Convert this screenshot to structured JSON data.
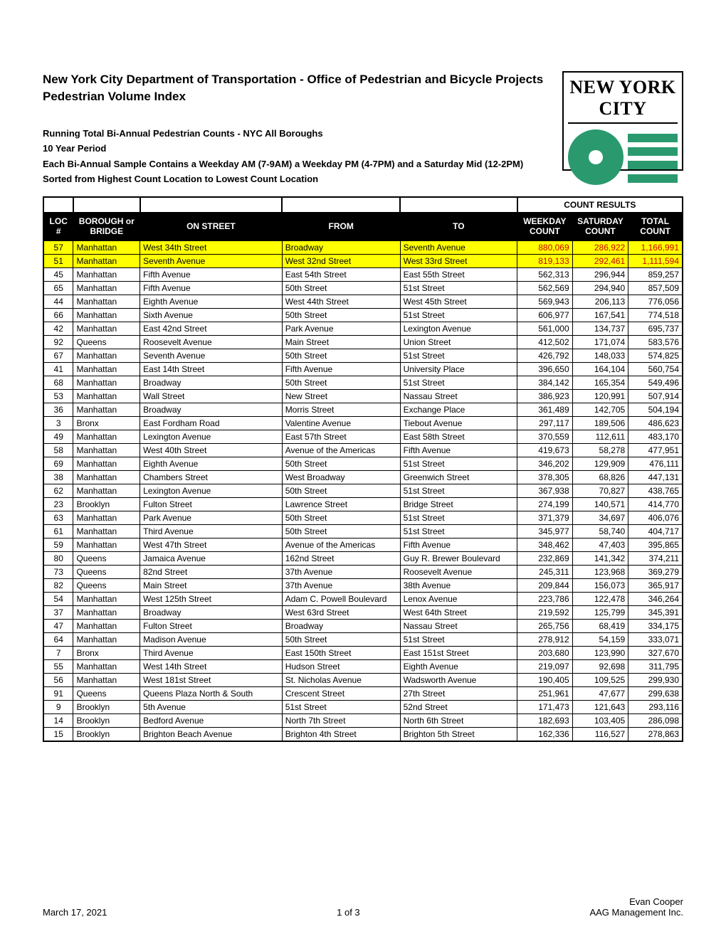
{
  "title": {
    "line1": "New York City Department of Transportation - Office of Pedestrian and Bicycle Projects",
    "line2": "Pedestrian Volume Index"
  },
  "logo_top": "NEW YORK CITY",
  "logo_accent": "#2a9a6e",
  "subhead": {
    "l1": "Running Total Bi-Annual Pedestrian Counts - NYC All Boroughs",
    "l2": "10 Year Period",
    "l3": "Each Bi-Annual Sample Contains a Weekday AM (7-9AM) a Weekday PM (4-7PM) and a Saturday Mid (12-2PM)",
    "l4": "Sorted from Highest Count Location to Lowest Count Location"
  },
  "table": {
    "group_header": "COUNT RESULTS",
    "columns": {
      "loc": "LOC\n#",
      "borough": "BOROUGH or\nBRIDGE",
      "on": "ON STREET",
      "from": "FROM",
      "to": "TO",
      "wkday": "WEEKDAY\nCOUNT",
      "sat": "SATURDAY\nCOUNT",
      "total": "TOTAL\nCOUNT"
    },
    "highlight_color": "#ffff00",
    "highlight_text_color": "#cc0000",
    "rows": [
      {
        "hl": true,
        "loc": "57",
        "borough": "Manhattan",
        "on": "West 34th Street",
        "from": "Broadway",
        "to": "Seventh Avenue",
        "wk": "880,069",
        "sat": "286,922",
        "tot": "1,166,991"
      },
      {
        "hl": true,
        "loc": "51",
        "borough": "Manhattan",
        "on": "Seventh Avenue",
        "from": "West 32nd Street",
        "to": "West 33rd Street",
        "wk": "819,133",
        "sat": "292,461",
        "tot": "1,111,594"
      },
      {
        "loc": "45",
        "borough": "Manhattan",
        "on": "Fifth Avenue",
        "from": "East 54th Street",
        "to": "East 55th Street",
        "wk": "562,313",
        "sat": "296,944",
        "tot": "859,257"
      },
      {
        "loc": "65",
        "borough": "Manhattan",
        "on": "Fifth Avenue",
        "from": "50th Street",
        "to": "51st Street",
        "wk": "562,569",
        "sat": "294,940",
        "tot": "857,509"
      },
      {
        "loc": "44",
        "borough": "Manhattan",
        "on": "Eighth Avenue",
        "from": "West 44th Street",
        "to": "West 45th Street",
        "wk": "569,943",
        "sat": "206,113",
        "tot": "776,056"
      },
      {
        "loc": "66",
        "borough": "Manhattan",
        "on": "Sixth Avenue",
        "from": "50th Street",
        "to": "51st Street",
        "wk": "606,977",
        "sat": "167,541",
        "tot": "774,518"
      },
      {
        "loc": "42",
        "borough": "Manhattan",
        "on": "East 42nd Street",
        "from": "Park Avenue",
        "to": "Lexington Avenue",
        "wk": "561,000",
        "sat": "134,737",
        "tot": "695,737"
      },
      {
        "loc": "92",
        "borough": "Queens",
        "on": "Roosevelt Avenue",
        "from": "Main Street",
        "to": "Union Street",
        "wk": "412,502",
        "sat": "171,074",
        "tot": "583,576"
      },
      {
        "loc": "67",
        "borough": "Manhattan",
        "on": "Seventh Avenue",
        "from": "50th Street",
        "to": "51st Street",
        "wk": "426,792",
        "sat": "148,033",
        "tot": "574,825"
      },
      {
        "loc": "41",
        "borough": "Manhattan",
        "on": "East 14th Street",
        "from": "Fifth Avenue",
        "to": "University Place",
        "wk": "396,650",
        "sat": "164,104",
        "tot": "560,754"
      },
      {
        "loc": "68",
        "borough": "Manhattan",
        "on": "Broadway",
        "from": "50th Street",
        "to": "51st Street",
        "wk": "384,142",
        "sat": "165,354",
        "tot": "549,496"
      },
      {
        "loc": "53",
        "borough": "Manhattan",
        "on": "Wall Street",
        "from": "New Street",
        "to": "Nassau Street",
        "wk": "386,923",
        "sat": "120,991",
        "tot": "507,914"
      },
      {
        "loc": "36",
        "borough": "Manhattan",
        "on": "Broadway",
        "from": "Morris Street",
        "to": "Exchange Place",
        "wk": "361,489",
        "sat": "142,705",
        "tot": "504,194"
      },
      {
        "loc": "3",
        "borough": "Bronx",
        "on": "East Fordham Road",
        "from": "Valentine Avenue",
        "to": "Tiebout Avenue",
        "wk": "297,117",
        "sat": "189,506",
        "tot": "486,623"
      },
      {
        "loc": "49",
        "borough": "Manhattan",
        "on": "Lexington Avenue",
        "from": "East 57th Street",
        "to": "East 58th Street",
        "wk": "370,559",
        "sat": "112,611",
        "tot": "483,170"
      },
      {
        "loc": "58",
        "borough": "Manhattan",
        "on": "West 40th Street",
        "from": "Avenue of the Americas",
        "to": "Fifth Avenue",
        "wk": "419,673",
        "sat": "58,278",
        "tot": "477,951"
      },
      {
        "loc": "69",
        "borough": "Manhattan",
        "on": "Eighth Avenue",
        "from": "50th Street",
        "to": "51st Street",
        "wk": "346,202",
        "sat": "129,909",
        "tot": "476,111"
      },
      {
        "loc": "38",
        "borough": "Manhattan",
        "on": "Chambers Street",
        "from": "West Broadway",
        "to": "Greenwich Street",
        "wk": "378,305",
        "sat": "68,826",
        "tot": "447,131"
      },
      {
        "loc": "62",
        "borough": "Manhattan",
        "on": "Lexington Avenue",
        "from": "50th Street",
        "to": "51st Street",
        "wk": "367,938",
        "sat": "70,827",
        "tot": "438,765"
      },
      {
        "loc": "23",
        "borough": "Brooklyn",
        "on": "Fulton Street",
        "from": "Lawrence Street",
        "to": "Bridge Street",
        "wk": "274,199",
        "sat": "140,571",
        "tot": "414,770"
      },
      {
        "loc": "63",
        "borough": "Manhattan",
        "on": "Park Avenue",
        "from": "50th Street",
        "to": "51st Street",
        "wk": "371,379",
        "sat": "34,697",
        "tot": "406,076"
      },
      {
        "loc": "61",
        "borough": "Manhattan",
        "on": "Third Avenue",
        "from": "50th Street",
        "to": "51st Street",
        "wk": "345,977",
        "sat": "58,740",
        "tot": "404,717"
      },
      {
        "loc": "59",
        "borough": "Manhattan",
        "on": "West 47th Street",
        "from": "Avenue of the Americas",
        "to": "Fifth Avenue",
        "wk": "348,462",
        "sat": "47,403",
        "tot": "395,865"
      },
      {
        "loc": "80",
        "borough": "Queens",
        "on": "Jamaica Avenue",
        "from": "162nd Street",
        "to": "Guy R. Brewer Boulevard",
        "wk": "232,869",
        "sat": "141,342",
        "tot": "374,211"
      },
      {
        "loc": "73",
        "borough": "Queens",
        "on": "82nd Street",
        "from": "37th Avenue",
        "to": "Roosevelt Avenue",
        "wk": "245,311",
        "sat": "123,968",
        "tot": "369,279"
      },
      {
        "loc": "82",
        "borough": "Queens",
        "on": "Main Street",
        "from": "37th Avenue",
        "to": "38th Avenue",
        "wk": "209,844",
        "sat": "156,073",
        "tot": "365,917"
      },
      {
        "loc": "54",
        "borough": "Manhattan",
        "on": "West 125th Street",
        "from": "Adam C. Powell Boulevard",
        "to": "Lenox Avenue",
        "wk": "223,786",
        "sat": "122,478",
        "tot": "346,264"
      },
      {
        "loc": "37",
        "borough": "Manhattan",
        "on": "Broadway",
        "from": "West 63rd Street",
        "to": "West 64th Street",
        "wk": "219,592",
        "sat": "125,799",
        "tot": "345,391"
      },
      {
        "loc": "47",
        "borough": "Manhattan",
        "on": "Fulton Street",
        "from": "Broadway",
        "to": "Nassau Street",
        "wk": "265,756",
        "sat": "68,419",
        "tot": "334,175"
      },
      {
        "loc": "64",
        "borough": "Manhattan",
        "on": "Madison Avenue",
        "from": "50th Street",
        "to": "51st Street",
        "wk": "278,912",
        "sat": "54,159",
        "tot": "333,071"
      },
      {
        "loc": "7",
        "borough": "Bronx",
        "on": "Third Avenue",
        "from": "East 150th Street",
        "to": "East 151st Street",
        "wk": "203,680",
        "sat": "123,990",
        "tot": "327,670"
      },
      {
        "loc": "55",
        "borough": "Manhattan",
        "on": "West 14th Street",
        "from": "Hudson Street",
        "to": "Eighth Avenue",
        "wk": "219,097",
        "sat": "92,698",
        "tot": "311,795"
      },
      {
        "loc": "56",
        "borough": "Manhattan",
        "on": "West 181st Street",
        "from": "St. Nicholas Avenue",
        "to": "Wadsworth Avenue",
        "wk": "190,405",
        "sat": "109,525",
        "tot": "299,930"
      },
      {
        "loc": "91",
        "borough": "Queens",
        "on": "Queens Plaza North & South",
        "from": "Crescent Street",
        "to": "27th Street",
        "wk": "251,961",
        "sat": "47,677",
        "tot": "299,638"
      },
      {
        "loc": "9",
        "borough": "Brooklyn",
        "on": "5th Avenue",
        "from": "51st Street",
        "to": "52nd Street",
        "wk": "171,473",
        "sat": "121,643",
        "tot": "293,116"
      },
      {
        "loc": "14",
        "borough": "Brooklyn",
        "on": "Bedford Avenue",
        "from": "North 7th Street",
        "to": "North 6th Street",
        "wk": "182,693",
        "sat": "103,405",
        "tot": "286,098"
      },
      {
        "loc": "15",
        "borough": "Brooklyn",
        "on": "Brighton Beach Avenue",
        "from": "Brighton 4th Street",
        "to": "Brighton 5th Street",
        "wk": "162,336",
        "sat": "116,527",
        "tot": "278,863"
      }
    ]
  },
  "footer": {
    "date": "March 17, 2021",
    "page": "1 of 3",
    "name": "Evan Cooper",
    "org": "AAG Management Inc."
  }
}
